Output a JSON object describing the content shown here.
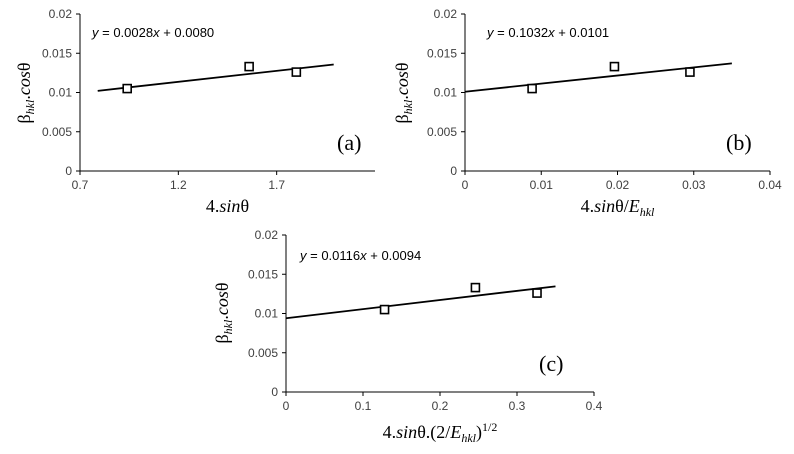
{
  "chart_data": [
    {
      "type": "scatter",
      "panel_label": "(a)",
      "equation": "y = 0.0028x + 0.0080",
      "equation_parts": {
        "y": "y",
        "mid": " = 0.0028",
        "x": "x",
        "tail": " + 0.0080"
      },
      "ylabel": {
        "beta": "β",
        "sub": "hkl",
        "dot": ".",
        "cos": "cos",
        "theta": "θ"
      },
      "xlabel_parts": [
        {
          "text": "4.",
          "italic": false
        },
        {
          "text": "sin",
          "italic": true
        },
        {
          "text": "θ",
          "italic": false
        }
      ],
      "xlim": [
        0.7,
        2.2
      ],
      "ylim": [
        0,
        0.02
      ],
      "xticks": [
        "0.7",
        "1.2",
        "1.7"
      ],
      "yticks": [
        "0",
        "0.005",
        "0.01",
        "0.015",
        "0.02"
      ],
      "grid": false,
      "x": [
        0.94,
        1.56,
        1.8
      ],
      "y": [
        0.0105,
        0.0133,
        0.0126
      ],
      "trendline": {
        "slope": 0.0028,
        "intercept": 0.008,
        "x_range": [
          0.79,
          1.99
        ]
      }
    },
    {
      "type": "scatter",
      "panel_label": "(b)",
      "equation": "y = 0.1032x + 0.0101",
      "equation_parts": {
        "y": "y",
        "mid": " = 0.1032",
        "x": "x",
        "tail": " + 0.0101"
      },
      "ylabel": {
        "beta": "β",
        "sub": "hkl",
        "dot": ".",
        "cos": "cos",
        "theta": "θ"
      },
      "xlabel_parts": [
        {
          "text": "4.",
          "italic": false
        },
        {
          "text": "sin",
          "italic": true
        },
        {
          "text": "θ/",
          "italic": false
        },
        {
          "text": "E",
          "italic": true
        },
        {
          "text": "hkl",
          "italic": true,
          "sub": true
        }
      ],
      "xlim": [
        0,
        0.04
      ],
      "ylim": [
        0,
        0.02
      ],
      "xticks": [
        "0",
        "0.01",
        "0.02",
        "0.03",
        "0.04"
      ],
      "yticks": [
        "0",
        "0.005",
        "0.01",
        "0.015",
        "0.02"
      ],
      "grid": false,
      "x": [
        0.0088,
        0.0196,
        0.0295
      ],
      "y": [
        0.0105,
        0.0133,
        0.0126
      ],
      "trendline": {
        "slope": 0.1032,
        "intercept": 0.0101,
        "x_range": [
          0,
          0.035
        ]
      }
    },
    {
      "type": "scatter",
      "panel_label": "(c)",
      "equation": "y = 0.0116x + 0.0094",
      "equation_parts": {
        "y": "y",
        "mid": " = 0.0116",
        "x": "x",
        "tail": " + 0.0094"
      },
      "ylabel": {
        "beta": "β",
        "sub": "hkl",
        "dot": ".",
        "cos": "cos",
        "theta": "θ"
      },
      "xlabel_parts": [
        {
          "text": "4.",
          "italic": false
        },
        {
          "text": "sin",
          "italic": true
        },
        {
          "text": "θ.(2/",
          "italic": false
        },
        {
          "text": "E",
          "italic": true
        },
        {
          "text": "hkl",
          "italic": true,
          "sub": true
        },
        {
          "text": ")",
          "italic": false
        },
        {
          "text": "1/2",
          "italic": false,
          "sup": true
        }
      ],
      "xlim": [
        0,
        0.4
      ],
      "ylim": [
        0,
        0.02
      ],
      "xticks": [
        "0",
        "0.1",
        "0.2",
        "0.3",
        "0.4"
      ],
      "yticks": [
        "0",
        "0.005",
        "0.01",
        "0.015",
        "0.02"
      ],
      "grid": false,
      "x": [
        0.128,
        0.246,
        0.326
      ],
      "y": [
        0.0105,
        0.0133,
        0.0126
      ],
      "trendline": {
        "slope": 0.0116,
        "intercept": 0.0094,
        "x_range": [
          0,
          0.35
        ]
      }
    }
  ]
}
